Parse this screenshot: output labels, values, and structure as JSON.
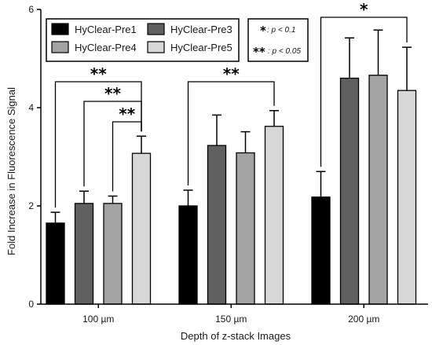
{
  "chart_data": {
    "type": "bar",
    "xlabel": "Depth of z-stack Images",
    "ylabel": "Fold Increase in Fluorescence Signal",
    "ylim": [
      0,
      6
    ],
    "yticks": [
      0,
      2,
      4,
      6
    ],
    "categories": [
      "100 µm",
      "150 µm",
      "200 µm"
    ],
    "series": [
      {
        "name": "HyClear-Pre1",
        "color": "#000000",
        "values": [
          1.65,
          2.0,
          2.18
        ],
        "errors": [
          0.22,
          0.32,
          0.52
        ]
      },
      {
        "name": "HyClear-Pre3",
        "color": "#606060",
        "values": [
          2.05,
          3.23,
          4.6
        ],
        "errors": [
          0.25,
          0.62,
          0.82
        ]
      },
      {
        "name": "HyClear-Pre4",
        "color": "#a3a3a3",
        "values": [
          2.05,
          3.08,
          4.66
        ],
        "errors": [
          0.15,
          0.43,
          0.92
        ]
      },
      {
        "name": "HyClear-Pre5",
        "color": "#d7d7d7",
        "values": [
          3.07,
          3.62,
          4.35
        ],
        "errors": [
          0.35,
          0.32,
          0.88
        ]
      }
    ],
    "significance": [
      {
        "category": 0,
        "from": 0,
        "to": 3,
        "stars": "**"
      },
      {
        "category": 0,
        "from": 1,
        "to": 3,
        "stars": "**"
      },
      {
        "category": 0,
        "from": 2,
        "to": 3,
        "stars": "**"
      },
      {
        "category": 1,
        "from": 0,
        "to": 3,
        "stars": "**"
      },
      {
        "category": 2,
        "from": 0,
        "to": 3,
        "stars": "*"
      }
    ],
    "significance_legend": [
      {
        "stars": "*",
        "text": ": p < 0.1"
      },
      {
        "stars": "**",
        "text": ": p < 0.05"
      }
    ],
    "legend_position": "top"
  }
}
